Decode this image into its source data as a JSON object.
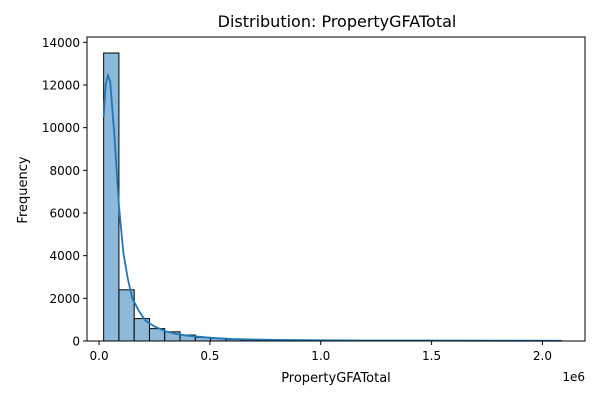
{
  "chart_data": {
    "type": "bar",
    "title": "Distribution: PropertyGFATotal",
    "xlabel": "PropertyGFATotal",
    "ylabel": "Frequency",
    "x_offset_label": "1e6",
    "xlim": [
      -0.0544,
      2.192
    ],
    "ylim": [
      0,
      14250
    ],
    "xticks": [
      {
        "value": 0.0,
        "label": "0.0"
      },
      {
        "value": 0.5,
        "label": "0.5"
      },
      {
        "value": 1.0,
        "label": "1.0"
      },
      {
        "value": 1.5,
        "label": "1.5"
      },
      {
        "value": 2.0,
        "label": "2.0"
      }
    ],
    "yticks": [
      {
        "value": 0,
        "label": "0"
      },
      {
        "value": 2000,
        "label": "2000"
      },
      {
        "value": 4000,
        "label": "4000"
      },
      {
        "value": 6000,
        "label": "6000"
      },
      {
        "value": 8000,
        "label": "8000"
      },
      {
        "value": 10000,
        "label": "10000"
      },
      {
        "value": 12000,
        "label": "12000"
      },
      {
        "value": 14000,
        "label": "14000"
      }
    ],
    "bin_start": 0.0207,
    "bin_width": 0.0689,
    "counts": [
      13500,
      2400,
      1050,
      580,
      430,
      280,
      170,
      120,
      80,
      60,
      45,
      35,
      30,
      25,
      20,
      18,
      15,
      12,
      10,
      10,
      8,
      8,
      6,
      6,
      5,
      5,
      5,
      4,
      4,
      5
    ],
    "kde": {
      "x": [
        0.0207,
        0.03,
        0.04,
        0.05,
        0.07,
        0.09,
        0.11,
        0.13,
        0.15,
        0.18,
        0.21,
        0.25,
        0.3,
        0.35,
        0.4,
        0.5,
        0.6,
        0.8,
        1.0,
        1.2,
        1.5,
        1.8,
        2.087
      ],
      "y": [
        10500,
        12000,
        12450,
        12200,
        9500,
        6300,
        4100,
        2900,
        2000,
        1400,
        950,
        680,
        450,
        330,
        250,
        150,
        90,
        50,
        35,
        25,
        20,
        15,
        12
      ]
    },
    "colors": {
      "bar_fill": "#8db9da",
      "bar_edge": "#000000",
      "kde_line": "#1f77b4"
    }
  }
}
